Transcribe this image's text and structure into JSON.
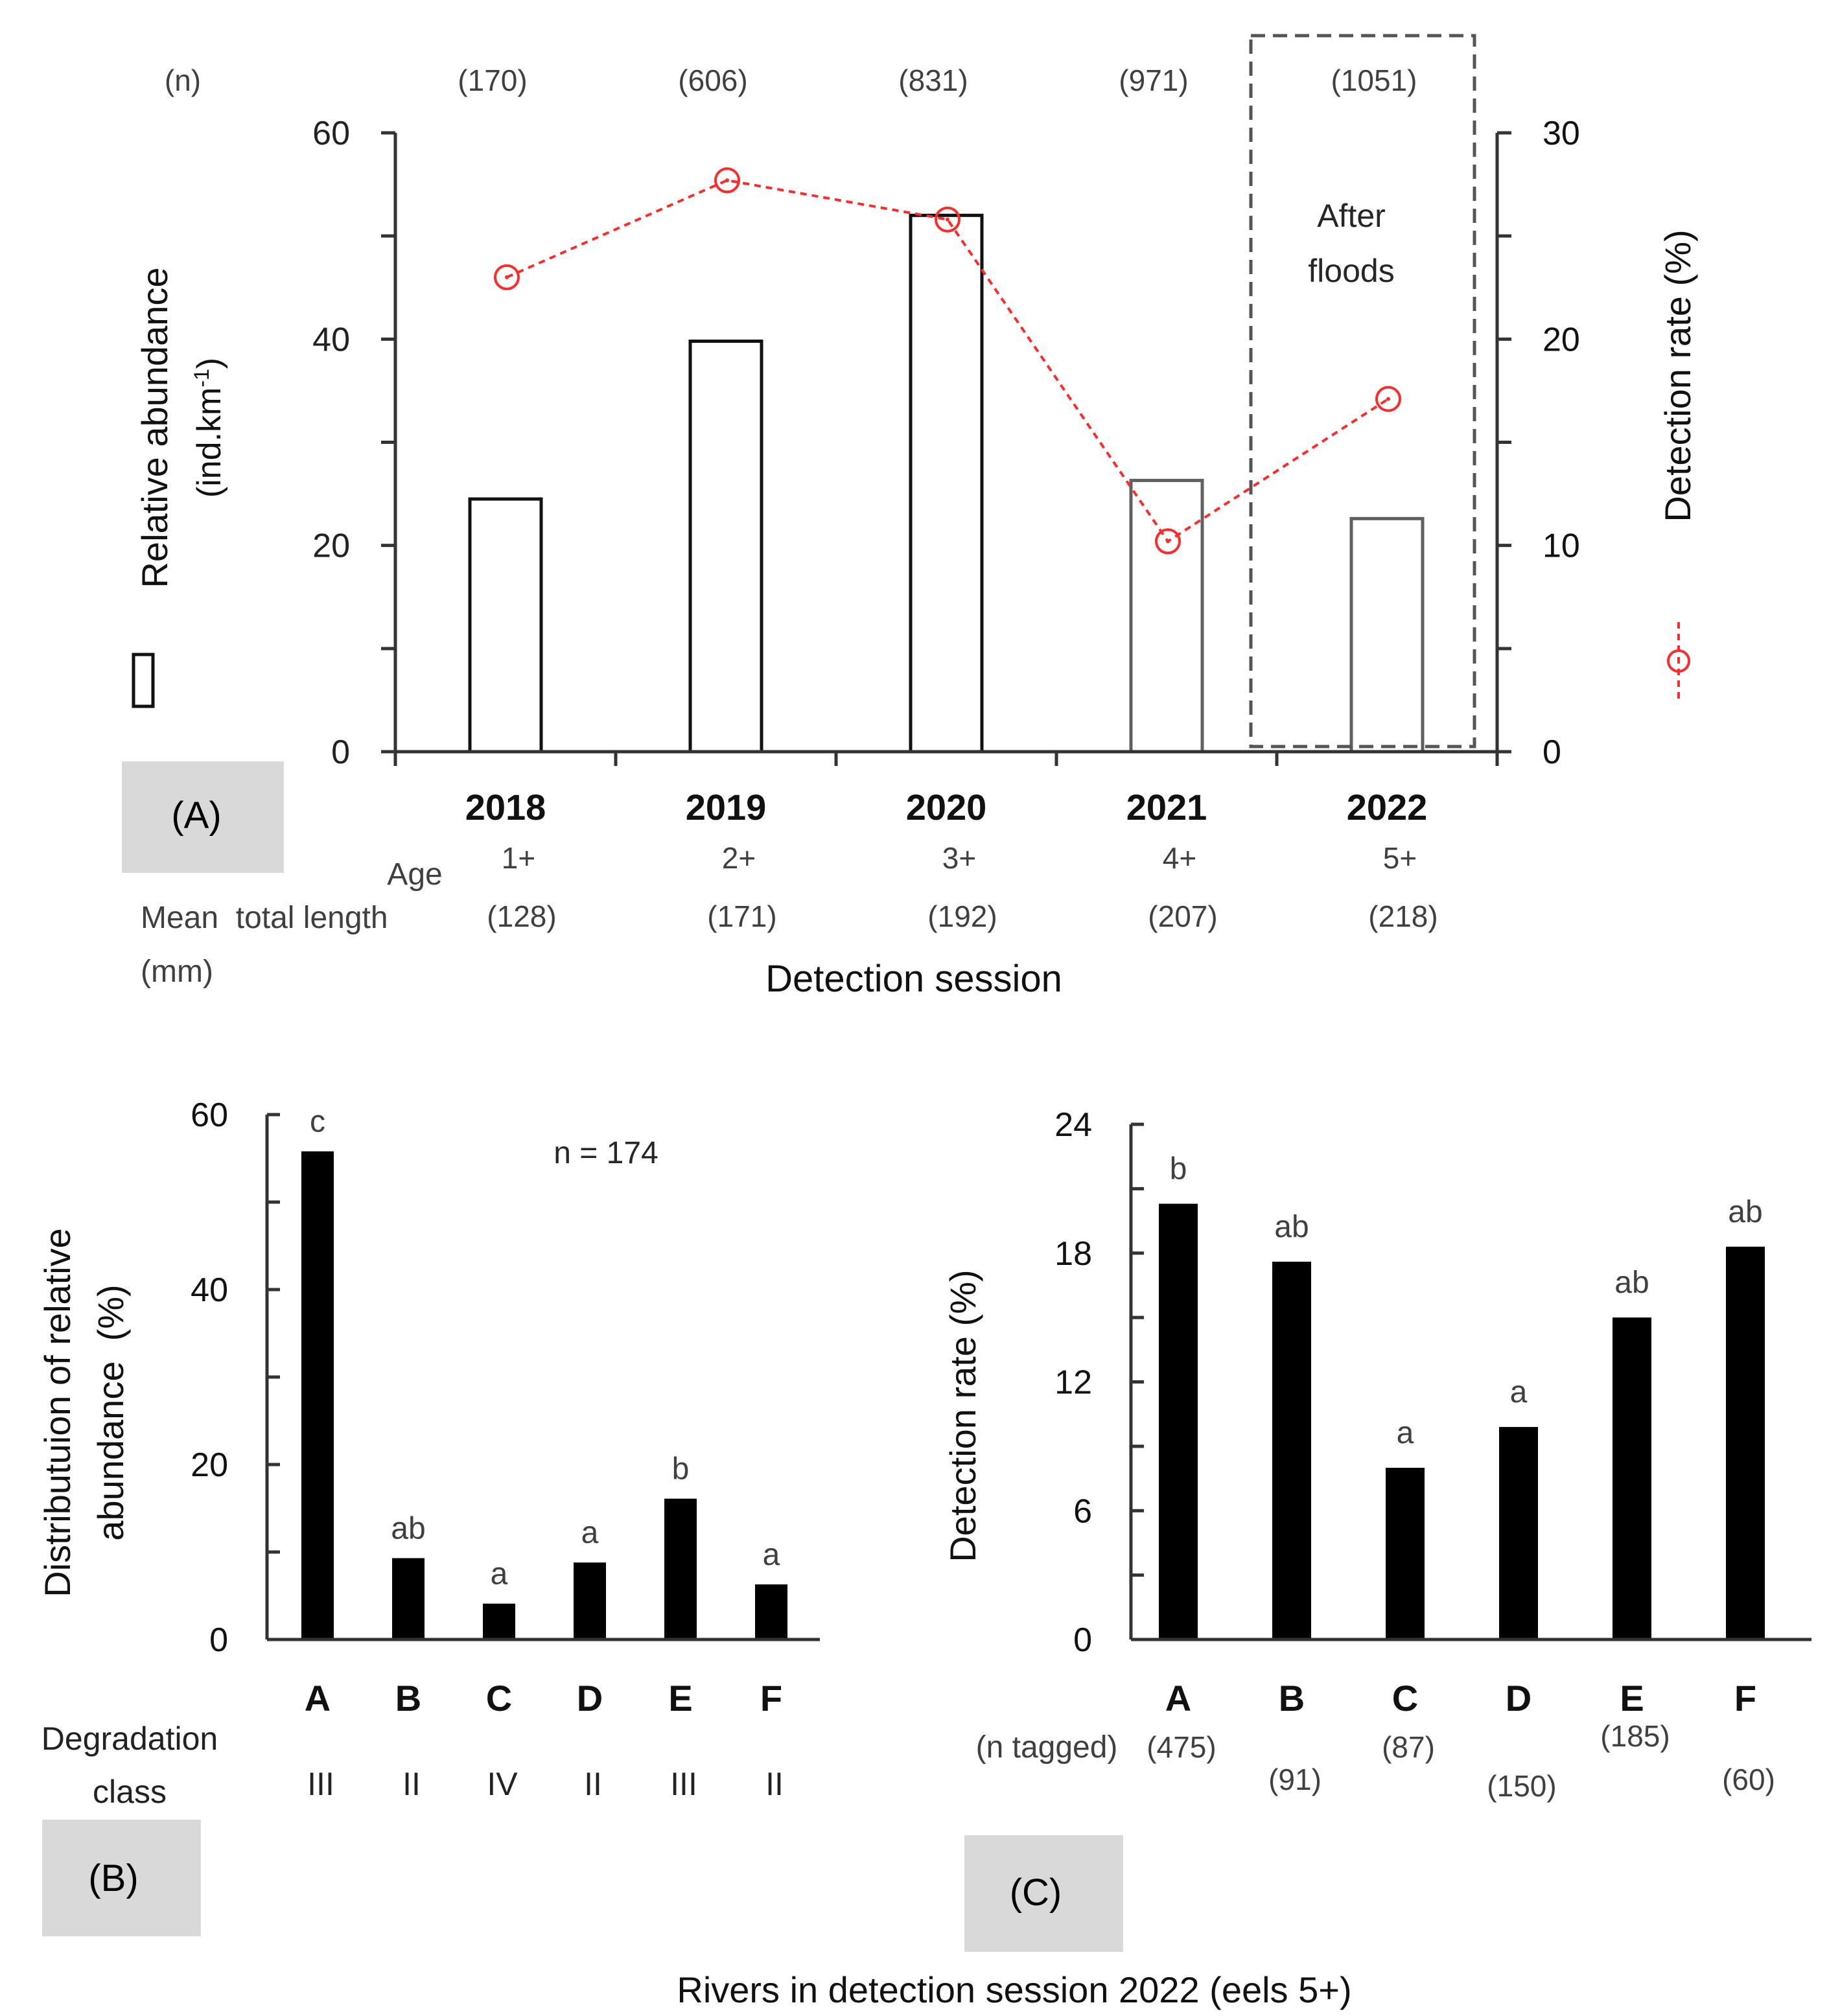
{
  "footer": {
    "title": "Rivers in detection session 2022 (eels 5+)"
  },
  "chart_data": [
    {
      "id": "A",
      "panel_label": "(A)",
      "type": "bar",
      "categories": [
        "2018",
        "2019",
        "2020",
        "2021",
        "2022"
      ],
      "n_header": "(n)",
      "n_values": [
        "(170)",
        "(606)",
        "(831)",
        "(971)",
        "(1051)"
      ],
      "series": [
        {
          "name": "Relative abundance",
          "kind": "bar",
          "axis": "left",
          "values": [
            24.5,
            39.8,
            52,
            26.3,
            22.6
          ]
        },
        {
          "name": "Detection rate",
          "kind": "line",
          "axis": "right",
          "values": [
            23,
            27.7,
            25.8,
            10.2,
            17.1
          ]
        }
      ],
      "ylabel_left_1": "Relative abundance",
      "ylabel_left_2": "(ind.km-1)",
      "ylabel_right": "Detection rate (%)",
      "ylim_left": [
        0,
        60
      ],
      "ylim_right": [
        0,
        30
      ],
      "yticks_left": [
        "0",
        "20",
        "40",
        "60"
      ],
      "yticks_right": [
        "0",
        "10",
        "20",
        "30"
      ],
      "annotation_line1": "After",
      "annotation_line2": "floods",
      "row_age_label": "Age",
      "ages": [
        "1+",
        "2+",
        "3+",
        "4+",
        "5+"
      ],
      "row_length_label_1": "Mean  total length",
      "row_length_label_2": "(mm)",
      "lengths": [
        "(128)",
        "(171)",
        "(192)",
        "(207)",
        "(218)"
      ],
      "xlabel": "Detection session",
      "colors": {
        "bar_fill": "#ffffff",
        "line": "#ff2a2a"
      }
    },
    {
      "id": "B",
      "panel_label": "(B)",
      "type": "bar",
      "categories": [
        "A",
        "B",
        "C",
        "D",
        "E",
        "F"
      ],
      "values": [
        55.8,
        9.3,
        4.1,
        8.8,
        16.1,
        6.3
      ],
      "letters": [
        "c",
        "ab",
        "a",
        "a",
        "b",
        "a"
      ],
      "annotation": "n = 174",
      "ylabel_1": "Distributuion of relative",
      "ylabel_2": "abundance  (%)",
      "ylim": [
        0,
        60
      ],
      "yticks": [
        "0",
        "20",
        "40",
        "60"
      ],
      "row_label_1": "Degradation",
      "row_label_2": "class",
      "classes": [
        "III",
        "II",
        "IV",
        "II",
        "III",
        "II"
      ],
      "colors": {
        "bar_fill": "#000000"
      }
    },
    {
      "id": "C",
      "panel_label": "(C)",
      "type": "bar",
      "categories": [
        "A",
        "B",
        "C",
        "D",
        "E",
        "F"
      ],
      "values": [
        20.3,
        17.6,
        8,
        9.9,
        15,
        18.3
      ],
      "letters": [
        "b",
        "ab",
        "a",
        "a",
        "ab",
        "ab"
      ],
      "ylabel": "Detection rate (%)",
      "ylim": [
        0,
        24
      ],
      "yticks": [
        "0",
        "6",
        "12",
        "18",
        "24"
      ],
      "row_label": "(n tagged)",
      "n_tagged": [
        "(475)",
        "(91)",
        "(87)",
        "(150)",
        "(185)",
        "(60)"
      ],
      "colors": {
        "bar_fill": "#000000"
      }
    }
  ]
}
